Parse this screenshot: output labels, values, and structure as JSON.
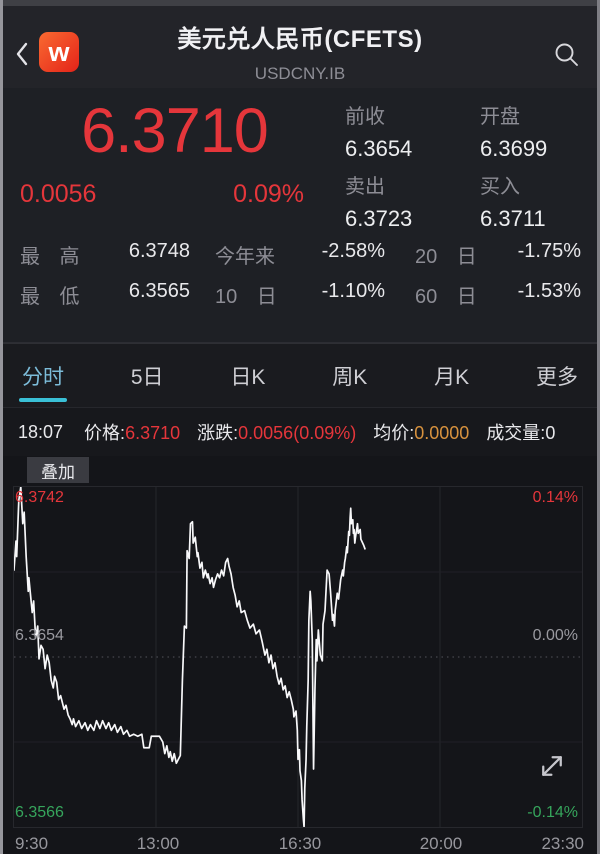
{
  "header": {
    "logo_text": "w",
    "title": "美元兑人民币(CFETS)",
    "subtitle": "USDCNY.IB"
  },
  "quote": {
    "price": "6.3710",
    "change": "0.0056",
    "change_pct": "0.09%",
    "fields": [
      {
        "label": "前收",
        "value": "6.3654"
      },
      {
        "label": "开盘",
        "value": "6.3699"
      },
      {
        "label": "卖出",
        "value": "6.3723"
      },
      {
        "label": "买入",
        "value": "6.3711"
      }
    ]
  },
  "stats": {
    "rows": [
      [
        {
          "label": "最 高",
          "value": "6.3748"
        },
        {
          "label": "今年来",
          "value": "-2.58%"
        },
        {
          "label": "20 日",
          "value": "-1.75%"
        }
      ],
      [
        {
          "label": "最 低",
          "value": "6.3565"
        },
        {
          "label": "10 日",
          "value": "-1.10%"
        },
        {
          "label": "60 日",
          "value": "-1.53%"
        }
      ]
    ]
  },
  "tabs": {
    "items": [
      {
        "label": "分时",
        "active": true
      },
      {
        "label": "5日",
        "active": false
      },
      {
        "label": "日K",
        "active": false
      },
      {
        "label": "周K",
        "active": false
      },
      {
        "label": "月K",
        "active": false
      },
      {
        "label": "更多",
        "active": false
      }
    ]
  },
  "status": {
    "time": "18:07",
    "items": [
      {
        "label": "价格:",
        "value": "6.3710"
      },
      {
        "label": "涨跌:",
        "value": "0.0056(0.09%)"
      },
      {
        "label": "均价:",
        "value": "0.0000"
      },
      {
        "label": "成交量:",
        "value": "0"
      }
    ]
  },
  "chart": {
    "overlay_button": "叠加"
  },
  "colors": {
    "up_red": "#e5363b",
    "down_green": "#36a55c",
    "accent_cyan": "#3ac0d6",
    "avg_orange": "#d8923e",
    "line": "#f8f8fa",
    "grid_v": "#26272c",
    "grid_h": "#1f2026",
    "grid_mid": "#53545b"
  },
  "chart_data": {
    "type": "line",
    "title": "USDCNY.IB 分时 (intraday)",
    "x_axis": {
      "tick_labels": [
        "9:30",
        "13:00",
        "16:30",
        "20:00",
        "23:30"
      ],
      "tick_minutes": [
        0,
        210,
        420,
        630,
        840
      ],
      "total_minutes": 840
    },
    "y_axis": {
      "range": {
        "top": 6.3742,
        "bottom": 6.3566
      },
      "left_labels": [
        "6.3742",
        "6.3654",
        "6.3566"
      ],
      "right_labels": [
        "0.14%",
        "0.00%",
        "-0.14%"
      ]
    },
    "grid": {
      "v_ticks_min": [
        210,
        420,
        630
      ],
      "h_fracs": [
        0.25,
        0.5,
        0.75
      ]
    },
    "points": [
      [
        0,
        6.3699
      ],
      [
        3,
        6.3714
      ],
      [
        4,
        6.3706
      ],
      [
        7,
        6.3735
      ],
      [
        10,
        6.3742
      ],
      [
        13,
        6.3723
      ],
      [
        15,
        6.3729
      ],
      [
        18,
        6.3706
      ],
      [
        21,
        6.3688
      ],
      [
        22,
        6.3695
      ],
      [
        27,
        6.3677
      ],
      [
        29,
        6.3683
      ],
      [
        32,
        6.3664
      ],
      [
        35,
        6.367
      ],
      [
        37,
        6.3653
      ],
      [
        40,
        6.366
      ],
      [
        43,
        6.3658
      ],
      [
        46,
        6.3648
      ],
      [
        49,
        6.3655
      ],
      [
        52,
        6.3651
      ],
      [
        55,
        6.3642
      ],
      [
        58,
        6.3638
      ],
      [
        60,
        6.3644
      ],
      [
        63,
        6.3641
      ],
      [
        66,
        6.3632
      ],
      [
        69,
        6.3634
      ],
      [
        74,
        6.3627
      ],
      [
        77,
        6.3629
      ],
      [
        80,
        6.3624
      ],
      [
        83,
        6.3622
      ],
      [
        86,
        6.3619
      ],
      [
        88,
        6.3622
      ],
      [
        91,
        6.3618
      ],
      [
        96,
        6.3621
      ],
      [
        100,
        6.3617
      ],
      [
        105,
        6.362
      ],
      [
        109,
        6.3616
      ],
      [
        113,
        6.3619
      ],
      [
        118,
        6.3616
      ],
      [
        122,
        6.3621
      ],
      [
        127,
        6.3617
      ],
      [
        131,
        6.3621
      ],
      [
        136,
        6.3617
      ],
      [
        140,
        6.362
      ],
      [
        144,
        6.3616
      ],
      [
        149,
        6.3619
      ],
      [
        153,
        6.3615
      ],
      [
        158,
        6.3618
      ],
      [
        162,
        6.3614
      ],
      [
        167,
        6.3616
      ],
      [
        171,
        6.3613
      ],
      [
        177,
        6.3614
      ],
      [
        183,
        6.3613
      ],
      [
        189,
        6.3614
      ],
      [
        192,
        6.3607
      ],
      [
        200,
        6.3607
      ],
      [
        203,
        6.3613
      ],
      [
        215,
        6.3613
      ],
      [
        220,
        6.361
      ],
      [
        223,
        6.3604
      ],
      [
        226,
        6.3608
      ],
      [
        229,
        6.3602
      ],
      [
        231,
        6.3605
      ],
      [
        234,
        6.36
      ],
      [
        237,
        6.3604
      ],
      [
        240,
        6.3599
      ],
      [
        243,
        6.3601
      ],
      [
        246,
        6.3603
      ],
      [
        249,
        6.3642
      ],
      [
        252,
        6.367
      ],
      [
        255,
        6.3669
      ],
      [
        256,
        6.3709
      ],
      [
        259,
        6.3705
      ],
      [
        261,
        6.3723
      ],
      [
        264,
        6.3724
      ],
      [
        265,
        6.3713
      ],
      [
        268,
        6.3716
      ],
      [
        271,
        6.3706
      ],
      [
        272,
        6.3708
      ],
      [
        275,
        6.37
      ],
      [
        278,
        6.3703
      ],
      [
        280,
        6.3695
      ],
      [
        283,
        6.3699
      ],
      [
        286,
        6.3695
      ],
      [
        287,
        6.3697
      ],
      [
        290,
        6.3692
      ],
      [
        293,
        6.3695
      ],
      [
        295,
        6.369
      ],
      [
        298,
        6.3694
      ],
      [
        301,
        6.3697
      ],
      [
        304,
        6.3695
      ],
      [
        307,
        6.3699
      ],
      [
        310,
        6.3696
      ],
      [
        313,
        6.3703
      ],
      [
        316,
        6.3705
      ],
      [
        318,
        6.3701
      ],
      [
        321,
        6.3697
      ],
      [
        324,
        6.369
      ],
      [
        327,
        6.3686
      ],
      [
        330,
        6.368
      ],
      [
        333,
        6.3683
      ],
      [
        336,
        6.3677
      ],
      [
        341,
        6.3678
      ],
      [
        345,
        6.3673
      ],
      [
        349,
        6.3669
      ],
      [
        354,
        6.3671
      ],
      [
        358,
        6.3666
      ],
      [
        363,
        6.3668
      ],
      [
        367,
        6.3662
      ],
      [
        371,
        6.3655
      ],
      [
        374,
        6.3658
      ],
      [
        377,
        6.3651
      ],
      [
        380,
        6.3655
      ],
      [
        383,
        6.3648
      ],
      [
        386,
        6.3651
      ],
      [
        389,
        6.3644
      ],
      [
        392,
        6.364
      ],
      [
        395,
        6.3643
      ],
      [
        398,
        6.3637
      ],
      [
        401,
        6.3639
      ],
      [
        404,
        6.3633
      ],
      [
        407,
        6.3636
      ],
      [
        410,
        6.3632
      ],
      [
        413,
        6.3627
      ],
      [
        414,
        6.3623
      ],
      [
        417,
        6.3626
      ],
      [
        419,
        6.3616
      ],
      [
        420,
        6.3601
      ],
      [
        422,
        6.3606
      ],
      [
        423,
        6.3595
      ],
      [
        425,
        6.359
      ],
      [
        426,
        6.358
      ],
      [
        428,
        6.357
      ],
      [
        429,
        6.3566
      ],
      [
        430,
        6.3586
      ],
      [
        432,
        6.3601
      ],
      [
        433,
        6.3618
      ],
      [
        435,
        6.3642
      ],
      [
        436,
        6.3673
      ],
      [
        438,
        6.3688
      ],
      [
        439,
        6.3683
      ],
      [
        441,
        6.3663
      ],
      [
        442,
        6.3632
      ],
      [
        443,
        6.3596
      ],
      [
        444,
        6.3616
      ],
      [
        445,
        6.3637
      ],
      [
        447,
        6.3663
      ],
      [
        448,
        6.3652
      ],
      [
        450,
        6.3668
      ],
      [
        453,
        6.3655
      ],
      [
        456,
        6.3652
      ],
      [
        457,
        6.3671
      ],
      [
        460,
        6.3678
      ],
      [
        463,
        6.3699
      ],
      [
        466,
        6.3697
      ],
      [
        468,
        6.3688
      ],
      [
        471,
        6.3673
      ],
      [
        472,
        6.3676
      ],
      [
        474,
        6.367
      ],
      [
        475,
        6.3678
      ],
      [
        478,
        6.3687
      ],
      [
        480,
        6.3684
      ],
      [
        483,
        6.3694
      ],
      [
        486,
        6.3699
      ],
      [
        487,
        6.3696
      ],
      [
        489,
        6.3703
      ],
      [
        490,
        6.3705
      ],
      [
        492,
        6.3711
      ],
      [
        493,
        6.3708
      ],
      [
        495,
        6.3719
      ],
      [
        496,
        6.3717
      ],
      [
        497,
        6.3726
      ],
      [
        498,
        6.3731
      ],
      [
        499,
        6.3723
      ],
      [
        501,
        6.3725
      ],
      [
        502,
        6.3718
      ],
      [
        503,
        6.372
      ],
      [
        504,
        6.3713
      ],
      [
        505,
        6.3716
      ],
      [
        508,
        6.3723
      ],
      [
        509,
        6.3718
      ],
      [
        512,
        6.372
      ],
      [
        513,
        6.3715
      ],
      [
        517,
        6.3712
      ],
      [
        519,
        6.371
      ]
    ]
  }
}
